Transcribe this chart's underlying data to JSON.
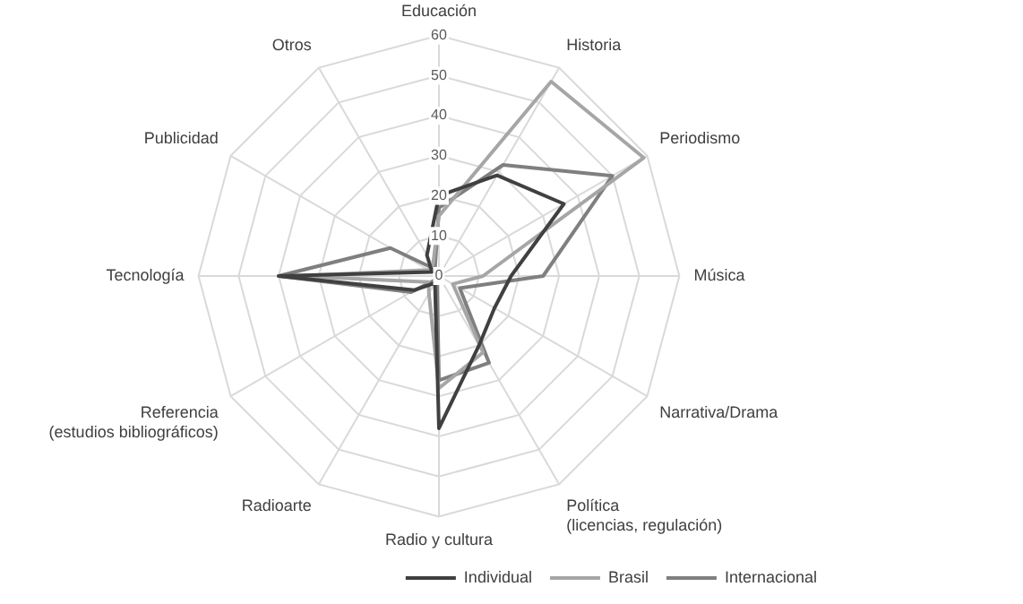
{
  "chart_data": {
    "type": "radar",
    "categories": [
      "Educación",
      "Historia",
      "Periodismo",
      "Música",
      "Narrativa/Drama",
      "Política (licencias, regulación)",
      "Radio y cultura",
      "Radioarte",
      "Referencia (estudios bibliográficos)",
      "Tecnología",
      "Publicidad",
      "Otros"
    ],
    "series": [
      {
        "name": "Individual",
        "color": "#404040",
        "values": [
          20,
          29,
          36,
          18,
          16,
          20,
          38,
          2,
          7,
          40,
          2,
          6
        ]
      },
      {
        "name": "Brasil",
        "color": "#a6a6a6",
        "values": [
          15,
          56,
          59,
          11,
          4,
          22,
          28,
          5,
          3,
          36,
          3,
          3
        ]
      },
      {
        "name": "Internacional",
        "color": "#7f7f7f",
        "values": [
          17,
          32,
          50,
          26,
          6,
          25,
          26,
          1,
          8,
          40,
          14,
          2
        ]
      }
    ],
    "ylim": [
      0,
      60
    ],
    "yticks": [
      0,
      10,
      20,
      30,
      40,
      50,
      60
    ],
    "grid": true,
    "legend": "bottom right",
    "marker": "none",
    "line_style": "solid"
  }
}
